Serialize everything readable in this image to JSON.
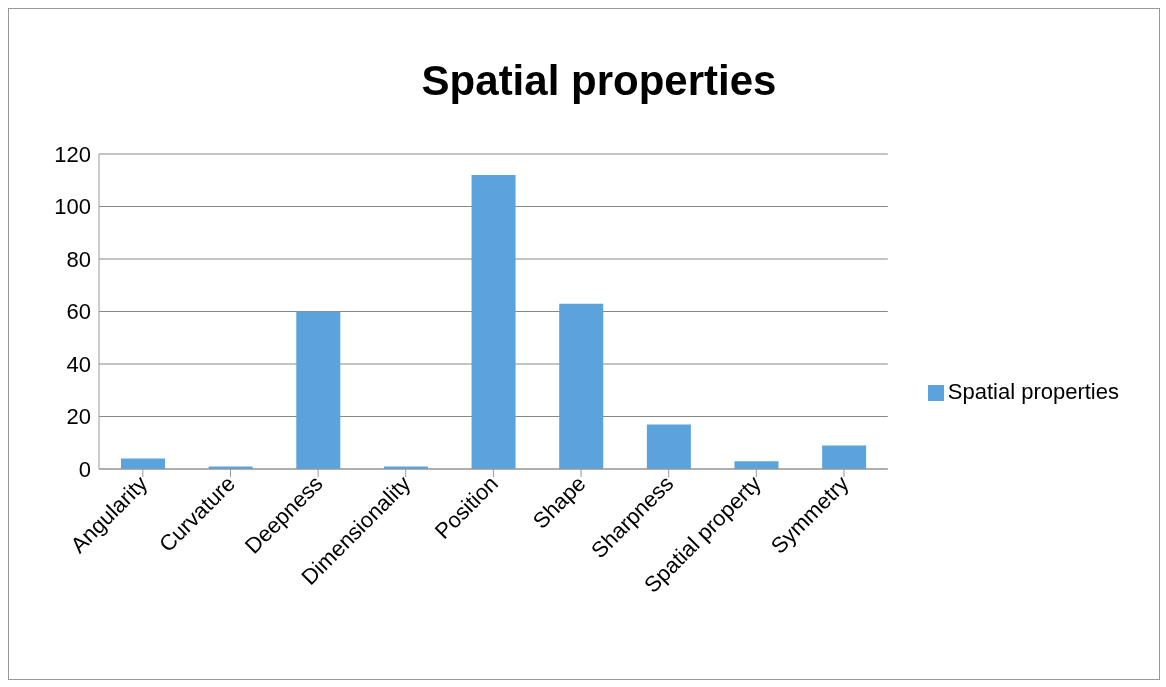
{
  "chart_data": {
    "type": "bar",
    "title": "Spatial properties",
    "categories": [
      "Angularity",
      "Curvature",
      "Deepness",
      "Dimensionality",
      "Position",
      "Shape",
      "Sharpness",
      "Spatial property",
      "Symmetry"
    ],
    "series": [
      {
        "name": "Spatial properties",
        "color": "#5ba3dd",
        "values": [
          4,
          1,
          60,
          1,
          112,
          63,
          17,
          3,
          9
        ]
      }
    ],
    "ylim": [
      0,
      120
    ],
    "yticks": [
      0,
      20,
      40,
      60,
      80,
      100,
      120
    ],
    "grid": "y",
    "legend": "right"
  }
}
